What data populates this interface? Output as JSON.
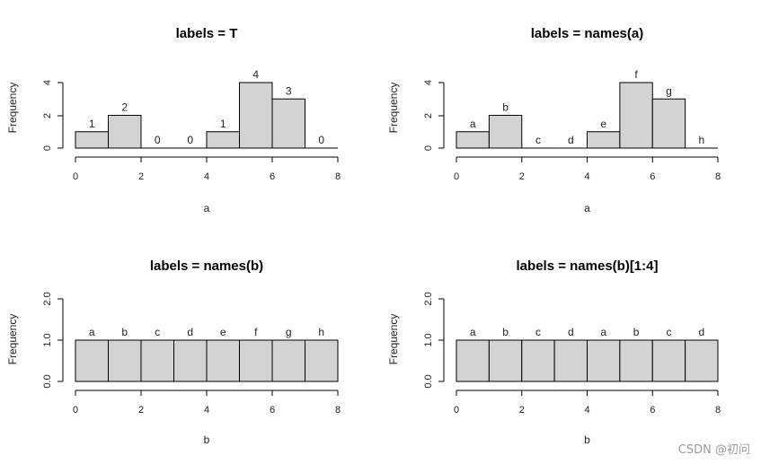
{
  "chart_data": [
    {
      "type": "bar",
      "title": "labels = T",
      "xlabel": "a",
      "ylabel": "Frequency",
      "bin_edges": [
        0,
        1,
        2,
        3,
        4,
        5,
        6,
        7,
        8
      ],
      "values": [
        1,
        2,
        0,
        0,
        1,
        4,
        3,
        0
      ],
      "bar_labels": [
        "1",
        "2",
        "0",
        "0",
        "1",
        "4",
        "3",
        "0"
      ],
      "xlim": [
        0,
        8
      ],
      "ylim": [
        0,
        4
      ],
      "x_ticks": [
        "0",
        "2",
        "4",
        "6",
        "8"
      ],
      "y_ticks": [
        "0",
        "2",
        "4"
      ],
      "grid": false
    },
    {
      "type": "bar",
      "title": "labels = names(a)",
      "xlabel": "a",
      "ylabel": "Frequency",
      "bin_edges": [
        0,
        1,
        2,
        3,
        4,
        5,
        6,
        7,
        8
      ],
      "values": [
        1,
        2,
        0,
        0,
        1,
        4,
        3,
        0
      ],
      "bar_labels": [
        "a",
        "b",
        "c",
        "d",
        "e",
        "f",
        "g",
        "h"
      ],
      "xlim": [
        0,
        8
      ],
      "ylim": [
        0,
        4
      ],
      "x_ticks": [
        "0",
        "2",
        "4",
        "6",
        "8"
      ],
      "y_ticks": [
        "0",
        "2",
        "4"
      ],
      "grid": false
    },
    {
      "type": "bar",
      "title": "labels = names(b)",
      "xlabel": "b",
      "ylabel": "Frequency",
      "bin_edges": [
        0,
        1,
        2,
        3,
        4,
        5,
        6,
        7,
        8
      ],
      "values": [
        1,
        1,
        1,
        1,
        1,
        1,
        1,
        1
      ],
      "bar_labels": [
        "a",
        "b",
        "c",
        "d",
        "e",
        "f",
        "g",
        "h"
      ],
      "xlim": [
        0,
        8
      ],
      "ylim": [
        0,
        2
      ],
      "x_ticks": [
        "0",
        "2",
        "4",
        "6",
        "8"
      ],
      "y_ticks": [
        "0.0",
        "1.0",
        "2.0"
      ],
      "grid": false
    },
    {
      "type": "bar",
      "title": "labels = names(b)[1:4]",
      "xlabel": "b",
      "ylabel": "Frequency",
      "bin_edges": [
        0,
        1,
        2,
        3,
        4,
        5,
        6,
        7,
        8
      ],
      "values": [
        1,
        1,
        1,
        1,
        1,
        1,
        1,
        1
      ],
      "bar_labels": [
        "a",
        "b",
        "c",
        "d",
        "a",
        "b",
        "c",
        "d"
      ],
      "xlim": [
        0,
        8
      ],
      "ylim": [
        0,
        2
      ],
      "x_ticks": [
        "0",
        "2",
        "4",
        "6",
        "8"
      ],
      "y_ticks": [
        "0.0",
        "1.0",
        "2.0"
      ],
      "grid": false
    }
  ],
  "colors": {
    "bar_fill": "#d3d3d3",
    "bar_stroke": "#000000",
    "axis": "#000000"
  },
  "watermark": "CSDN @初问"
}
